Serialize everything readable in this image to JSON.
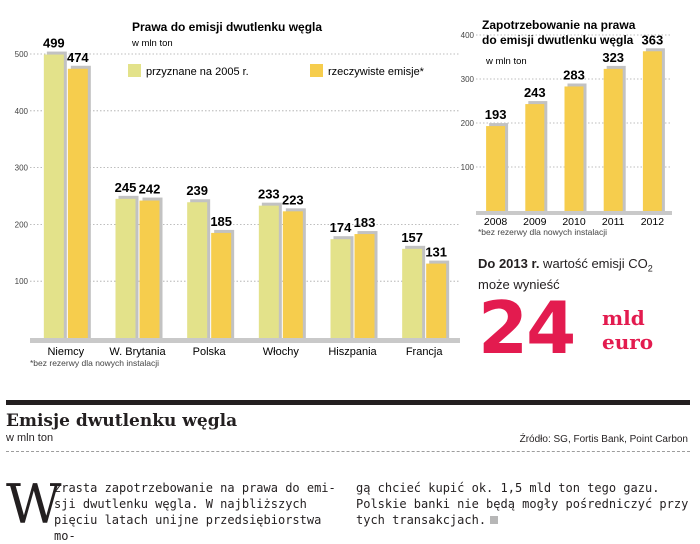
{
  "chart_data": [
    {
      "type": "bar",
      "title": "Prawa do emisji dwutlenku węgla",
      "subtitle": "w mln ton",
      "categories": [
        "Niemcy",
        "W. Brytania",
        "Polska",
        "Włochy",
        "Hiszpania",
        "Francja"
      ],
      "series": [
        {
          "name": "przyznane na 2005 r.",
          "values": [
            499,
            245,
            239,
            233,
            174,
            157
          ]
        },
        {
          "name": "rzeczywiste emisje*",
          "values": [
            474,
            242,
            185,
            223,
            183,
            131
          ]
        }
      ],
      "yticks": [
        100,
        200,
        300,
        400,
        500
      ],
      "ylim": [
        0,
        500
      ],
      "grid": true,
      "legend": "top",
      "footnote": "*bez rezerwy dla nowych instalacji",
      "colors": {
        "series1": "#e3e28a",
        "series2": "#f6cd4d",
        "shadow": "#c2c2c2",
        "grid": "#a9a9a9"
      }
    },
    {
      "type": "bar",
      "title": "Zapotrzebowanie na prawa do emisji dwutlenku węgla",
      "subtitle": "w mln ton",
      "categories": [
        "2008",
        "2009",
        "2010",
        "2011",
        "2012"
      ],
      "values": [
        193,
        243,
        283,
        323,
        363
      ],
      "yticks": [
        100,
        200,
        300,
        400
      ],
      "ylim": [
        0,
        400
      ],
      "grid": true,
      "footnote": "*bez rezerwy dla nowych instalacji",
      "colors": {
        "bar": "#f6cd4d",
        "shadow": "#c2c2c2",
        "grid": "#a9a9a9"
      }
    }
  ],
  "callout": {
    "text_before": "Do 2013 r.",
    "text_after": " wartość emisji CO",
    "subscript": "2",
    "line2": "może wynieść",
    "value": "24",
    "unit1": "mld",
    "unit2": "euro",
    "color": "#e31b4f"
  },
  "article": {
    "title": "Emisje dwutlenku węgla",
    "subtitle": "w mln ton",
    "source": "Źródło: SG, Fortis Bank, Point Carbon",
    "dropcap": "W",
    "col1_first": "zrasta zapotrzebowanie na prawa do emi-",
    "col1_rest": "sji dwutlenku węgla. W najbliższych pięciu latach unijne przedsiębiorstwa mo-",
    "col2": "gą chcieć kupić ok. 1,5 mld ton tego gazu. Polskie banki nie będą mogły pośredniczyć przy tych transakcjach."
  }
}
